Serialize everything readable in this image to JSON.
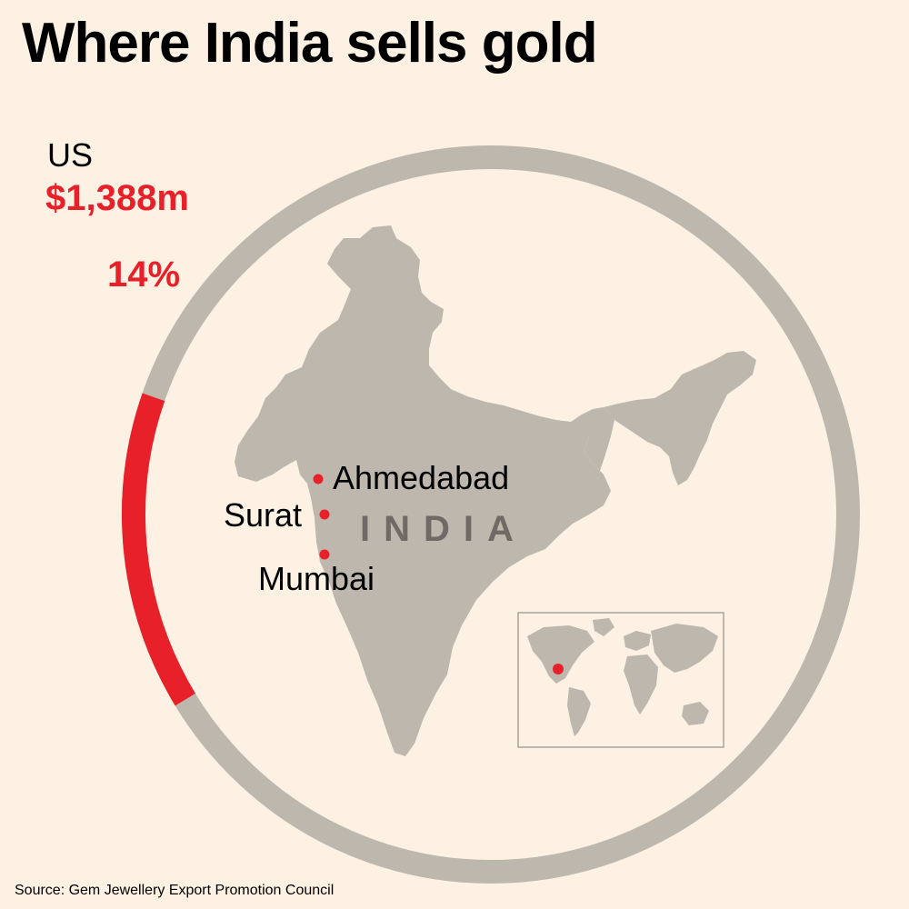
{
  "title": "Where India sells gold",
  "destination": {
    "name": "US",
    "value": "$1,388m",
    "share_label": "14%",
    "share_fraction": 0.14
  },
  "map": {
    "country_label": "INDIA",
    "cities": [
      "Ahmedabad",
      "Surat",
      "Mumbai"
    ]
  },
  "colors": {
    "background": "#fdf1e3",
    "land": "#bdb7ad",
    "accent": "#e8202a",
    "ring": "#bdb7ad"
  },
  "source": "Source: Gem Jewellery Export Promotion Council"
}
